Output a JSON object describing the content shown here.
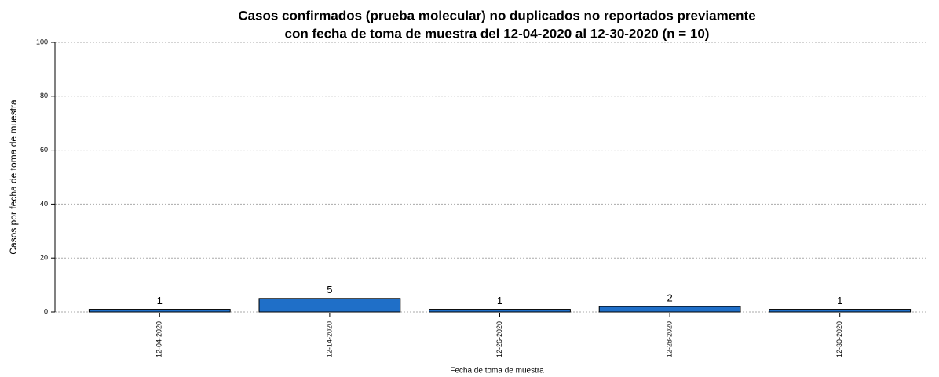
{
  "chart_data": {
    "type": "bar",
    "title": [
      "Casos confirmados (prueba molecular) no duplicados no reportados previamente",
      "con fecha de toma de muestra del 12-04-2020 al 12-30-2020 (n = 10)"
    ],
    "x_label": "Fecha de toma de muestra",
    "y_label": "Casos por fecha de toma de muestra",
    "categories": [
      "12-04-2020",
      "12-14-2020",
      "12-26-2020",
      "12-28-2020",
      "12-30-2020"
    ],
    "values": [
      1,
      5,
      1,
      2,
      1
    ],
    "color": "#1f6fc8",
    "ylim": [
      0,
      100
    ],
    "yticks": [
      0,
      20,
      40,
      60,
      80,
      100
    ],
    "grid": true
  }
}
